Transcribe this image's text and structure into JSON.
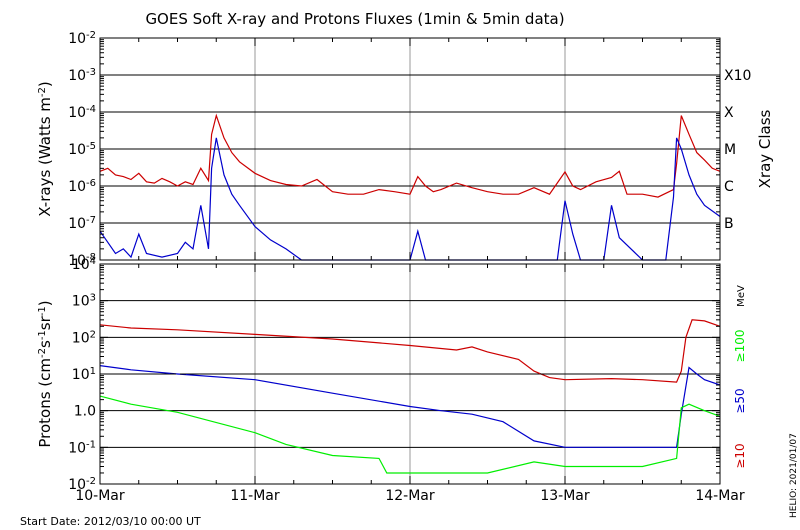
{
  "title": "GOES Soft X-ray and Protons Fluxes   (1min & 5min data)",
  "start_date": "Start Date: 2012/03/10 00:00 UT",
  "credit": "HELIO: 2021/01/07",
  "colors": {
    "red": "#cc0000",
    "blue": "#0000cc",
    "green": "#00ee00",
    "grid": "#999999"
  },
  "chart_data": [
    {
      "type": "line",
      "title": "",
      "ylabel_main": "X-rays (Watts m",
      "ylabel_sup": "-2",
      "ylabel_close": ")",
      "yscale": "log",
      "ylim": [
        1e-08,
        0.01
      ],
      "ytick_exps": [
        "-8",
        "-7",
        "-6",
        "-5",
        "-4",
        "-3",
        "-2"
      ],
      "y_right_title": "Xray Class",
      "xray_classes": [
        {
          "label": "B",
          "value": 1e-07
        },
        {
          "label": "C",
          "value": 1e-06
        },
        {
          "label": "M",
          "value": 1e-05
        },
        {
          "label": "X",
          "value": 0.0001
        },
        {
          "label": "X10",
          "value": 0.001
        }
      ],
      "series": [
        {
          "color": "red",
          "x": [
            0,
            0.05,
            0.1,
            0.15,
            0.2,
            0.25,
            0.3,
            0.35,
            0.4,
            0.45,
            0.5,
            0.55,
            0.6,
            0.65,
            0.7,
            0.72,
            0.75,
            0.8,
            0.85,
            0.9,
            1.0,
            1.1,
            1.2,
            1.3,
            1.4,
            1.5,
            1.6,
            1.7,
            1.8,
            1.9,
            2.0,
            2.05,
            2.1,
            2.15,
            2.2,
            2.3,
            2.4,
            2.5,
            2.6,
            2.7,
            2.8,
            2.9,
            3.0,
            3.05,
            3.1,
            3.2,
            3.3,
            3.35,
            3.4,
            3.5,
            3.6,
            3.7,
            3.72,
            3.75,
            3.8,
            3.85,
            3.9,
            3.95,
            4.0
          ],
          "y": [
            2.5e-06,
            3e-06,
            2e-06,
            1.8e-06,
            1.5e-06,
            2.2e-06,
            1.3e-06,
            1.2e-06,
            1.6e-06,
            1.3e-06,
            1e-06,
            1.3e-06,
            1.1e-06,
            3e-06,
            1.4e-06,
            2.5e-05,
            8e-05,
            2e-05,
            8e-06,
            4.5e-06,
            2.2e-06,
            1.4e-06,
            1.1e-06,
            1e-06,
            1.5e-06,
            7e-07,
            6e-07,
            6e-07,
            8e-07,
            7e-07,
            6e-07,
            1.8e-06,
            1e-06,
            7e-07,
            8e-07,
            1.2e-06,
            9e-07,
            7e-07,
            6e-07,
            6e-07,
            9e-07,
            6e-07,
            2.4e-06,
            1e-06,
            8e-07,
            1.3e-06,
            1.7e-06,
            2.5e-06,
            6e-07,
            6e-07,
            5e-07,
            8e-07,
            4e-06,
            8e-05,
            2.5e-05,
            8e-06,
            5e-06,
            3e-06,
            2.5e-06
          ]
        },
        {
          "color": "blue",
          "x": [
            0,
            0.05,
            0.1,
            0.15,
            0.2,
            0.25,
            0.3,
            0.4,
            0.5,
            0.55,
            0.6,
            0.65,
            0.7,
            0.72,
            0.75,
            0.8,
            0.85,
            0.9,
            1.0,
            1.1,
            1.2,
            1.3,
            1.5,
            1.7,
            1.9,
            2.0,
            2.05,
            2.1,
            2.2,
            2.5,
            2.8,
            2.95,
            3.0,
            3.05,
            3.1,
            3.25,
            3.3,
            3.35,
            3.5,
            3.65,
            3.7,
            3.72,
            3.75,
            3.8,
            3.85,
            3.9,
            4.0
          ],
          "y": [
            6e-08,
            3e-08,
            1.5e-08,
            2e-08,
            1.2e-08,
            5e-08,
            1.5e-08,
            1.2e-08,
            1.5e-08,
            3e-08,
            2e-08,
            3e-07,
            2e-08,
            3e-06,
            2e-05,
            2e-06,
            6e-07,
            3e-07,
            8e-08,
            3.5e-08,
            2e-08,
            1e-08,
            1e-08,
            1e-08,
            1e-08,
            1e-08,
            6e-08,
            1e-08,
            1e-08,
            1e-08,
            1e-08,
            1e-08,
            4e-07,
            5e-08,
            1e-08,
            1e-08,
            3e-07,
            4e-08,
            1e-08,
            1e-08,
            5e-07,
            2e-05,
            1e-05,
            2e-06,
            6e-07,
            3e-07,
            1.5e-07
          ]
        }
      ]
    },
    {
      "type": "line",
      "title": "",
      "ylabel_main": "Protons (cm",
      "ylabel_sup1": "-2",
      "ylabel_mid1": "s",
      "ylabel_sup2": "-1",
      "ylabel_mid2": "sr",
      "ylabel_sup3": "-1",
      "ylabel_close": ")",
      "yscale": "log",
      "ylim": [
        0.01,
        10000
      ],
      "ytick_labels": [
        {
          "base": "10",
          "exp": "-2"
        },
        {
          "base": "10",
          "exp": "-1"
        },
        {
          "base": "1.0",
          "exp": ""
        },
        {
          "base": "10",
          "exp": "1"
        },
        {
          "base": "10",
          "exp": "2"
        },
        {
          "base": "10",
          "exp": "3"
        },
        {
          "base": "10",
          "exp": "4"
        }
      ],
      "threshold": 10,
      "energy_unit": "MeV",
      "energy_labels": [
        {
          "label": "≥100",
          "color": "green"
        },
        {
          "label": "≥50",
          "color": "blue"
        },
        {
          "label": "≥10",
          "color": "red"
        }
      ],
      "series": [
        {
          "color": "red",
          "x": [
            0,
            0.2,
            0.5,
            1.0,
            1.5,
            2.0,
            2.3,
            2.4,
            2.5,
            2.7,
            2.8,
            2.9,
            3.0,
            3.3,
            3.5,
            3.72,
            3.75,
            3.78,
            3.82,
            3.9,
            4.0
          ],
          "y": [
            220,
            180,
            160,
            120,
            90,
            60,
            45,
            55,
            40,
            25,
            12,
            8,
            7,
            7.5,
            7,
            6,
            12,
            100,
            300,
            280,
            200
          ]
        },
        {
          "color": "blue",
          "x": [
            0,
            0.2,
            0.5,
            1.0,
            1.5,
            2.0,
            2.2,
            2.4,
            2.6,
            2.8,
            3.0,
            3.3,
            3.55,
            3.72,
            3.75,
            3.8,
            3.85,
            3.9,
            4.0
          ],
          "y": [
            17,
            13,
            10,
            7,
            3,
            1.3,
            1.0,
            0.8,
            0.5,
            0.15,
            0.1,
            0.1,
            0.1,
            0.1,
            0.8,
            15,
            10,
            7,
            5
          ]
        },
        {
          "color": "green",
          "x": [
            0,
            0.2,
            0.5,
            1.0,
            1.2,
            1.5,
            1.8,
            1.85,
            2.0,
            2.5,
            2.8,
            3.0,
            3.3,
            3.5,
            3.72,
            3.75,
            3.8,
            3.9,
            4.0
          ],
          "y": [
            2.5,
            1.5,
            0.9,
            0.25,
            0.12,
            0.06,
            0.05,
            0.02,
            0.02,
            0.02,
            0.04,
            0.03,
            0.03,
            0.03,
            0.05,
            1.2,
            1.5,
            1.0,
            0.7
          ]
        }
      ]
    }
  ],
  "x_axis": {
    "ticks": [
      {
        "x": 0,
        "label": "10-Mar"
      },
      {
        "x": 1,
        "label": "11-Mar"
      },
      {
        "x": 2,
        "label": "12-Mar"
      },
      {
        "x": 3,
        "label": "13-Mar"
      },
      {
        "x": 4,
        "label": "14-Mar"
      }
    ],
    "xlim": [
      0,
      4
    ]
  }
}
